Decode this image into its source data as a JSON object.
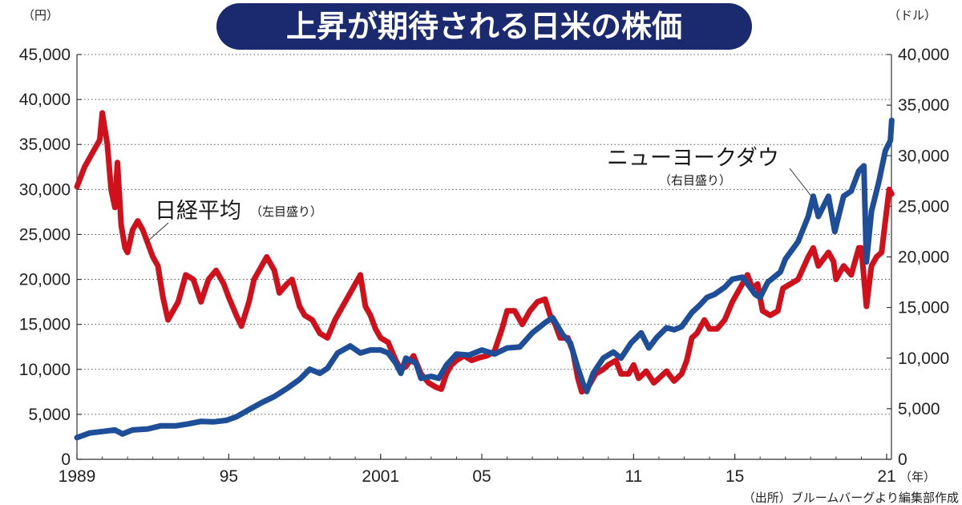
{
  "chart_data": {
    "type": "line",
    "title": "上昇が期待される日米の株価",
    "left_unit": "（円）",
    "right_unit": "（ドル）",
    "x_unit": "（年）",
    "source": "（出所）ブルームバーグより編集部作成",
    "x_range": [
      1989,
      2021
    ],
    "x_ticks": [
      {
        "value": 1989,
        "label": "1989"
      },
      {
        "value": 1995,
        "label": "95"
      },
      {
        "value": 2001,
        "label": "2001"
      },
      {
        "value": 2005,
        "label": "05"
      },
      {
        "value": 2011,
        "label": "11"
      },
      {
        "value": 2015,
        "label": "15"
      },
      {
        "value": 2021,
        "label": "21"
      }
    ],
    "left_axis": {
      "min": 0,
      "max": 45000,
      "ticks": [
        "0",
        "5,000",
        "10,000",
        "15,000",
        "20,000",
        "25,000",
        "30,000",
        "35,000",
        "40,000",
        "45,000"
      ],
      "values": [
        0,
        5000,
        10000,
        15000,
        20000,
        25000,
        30000,
        35000,
        40000,
        45000
      ]
    },
    "right_axis": {
      "min": 0,
      "max": 40000,
      "ticks": [
        "0",
        "5,000",
        "10,000",
        "15,000",
        "20,000",
        "25,000",
        "30,000",
        "35,000",
        "40,000"
      ],
      "values": [
        0,
        5000,
        10000,
        15000,
        20000,
        25000,
        30000,
        35000,
        40000
      ]
    },
    "grid": "horizontal-dotted",
    "series": [
      {
        "name": "日経平均",
        "note": "（左目盛り）",
        "axis": "left",
        "color": "#d0111b",
        "points": [
          [
            1989.0,
            30300
          ],
          [
            1989.3,
            32500
          ],
          [
            1989.6,
            34000
          ],
          [
            1989.9,
            35500
          ],
          [
            1990.0,
            38500
          ],
          [
            1990.2,
            35000
          ],
          [
            1990.35,
            30000
          ],
          [
            1990.5,
            28000
          ],
          [
            1990.6,
            33000
          ],
          [
            1990.75,
            26000
          ],
          [
            1990.9,
            23500
          ],
          [
            1991.0,
            23000
          ],
          [
            1991.2,
            25500
          ],
          [
            1991.4,
            26500
          ],
          [
            1991.6,
            25500
          ],
          [
            1991.8,
            24000
          ],
          [
            1992.0,
            22500
          ],
          [
            1992.2,
            21500
          ],
          [
            1992.4,
            18000
          ],
          [
            1992.6,
            15500
          ],
          [
            1992.8,
            16500
          ],
          [
            1993.0,
            17500
          ],
          [
            1993.3,
            20500
          ],
          [
            1993.6,
            20000
          ],
          [
            1993.9,
            17500
          ],
          [
            1994.2,
            20000
          ],
          [
            1994.5,
            21000
          ],
          [
            1994.8,
            19500
          ],
          [
            1995.0,
            18000
          ],
          [
            1995.3,
            16000
          ],
          [
            1995.5,
            14800
          ],
          [
            1995.8,
            17500
          ],
          [
            1996.0,
            20000
          ],
          [
            1996.3,
            21500
          ],
          [
            1996.5,
            22500
          ],
          [
            1996.8,
            21000
          ],
          [
            1997.0,
            18500
          ],
          [
            1997.3,
            19500
          ],
          [
            1997.5,
            20000
          ],
          [
            1997.8,
            17000
          ],
          [
            1998.0,
            16000
          ],
          [
            1998.3,
            15500
          ],
          [
            1998.6,
            14000
          ],
          [
            1998.9,
            13500
          ],
          [
            1999.2,
            15500
          ],
          [
            1999.5,
            17000
          ],
          [
            1999.8,
            18500
          ],
          [
            2000.0,
            19500
          ],
          [
            2000.2,
            20500
          ],
          [
            2000.4,
            17000
          ],
          [
            2000.6,
            16000
          ],
          [
            2000.8,
            14500
          ],
          [
            2001.0,
            13500
          ],
          [
            2001.3,
            13000
          ],
          [
            2001.6,
            11000
          ],
          [
            2001.8,
            10000
          ],
          [
            2002.0,
            10300
          ],
          [
            2002.3,
            11500
          ],
          [
            2002.6,
            9500
          ],
          [
            2002.9,
            8500
          ],
          [
            2003.2,
            8000
          ],
          [
            2003.4,
            7800
          ],
          [
            2003.6,
            9500
          ],
          [
            2003.8,
            10500
          ],
          [
            2004.0,
            11000
          ],
          [
            2004.3,
            11500
          ],
          [
            2004.6,
            11000
          ],
          [
            2004.9,
            11300
          ],
          [
            2005.2,
            11500
          ],
          [
            2005.5,
            12000
          ],
          [
            2005.8,
            14500
          ],
          [
            2006.0,
            16500
          ],
          [
            2006.3,
            16500
          ],
          [
            2006.6,
            15000
          ],
          [
            2006.9,
            16500
          ],
          [
            2007.2,
            17500
          ],
          [
            2007.5,
            17800
          ],
          [
            2007.7,
            16000
          ],
          [
            2007.9,
            15000
          ],
          [
            2008.1,
            13500
          ],
          [
            2008.4,
            13500
          ],
          [
            2008.6,
            12000
          ],
          [
            2008.8,
            9000
          ],
          [
            2008.95,
            7500
          ],
          [
            2009.2,
            8000
          ],
          [
            2009.5,
            9500
          ],
          [
            2009.8,
            10000
          ],
          [
            2010.0,
            10500
          ],
          [
            2010.3,
            11000
          ],
          [
            2010.5,
            9500
          ],
          [
            2010.8,
            9500
          ],
          [
            2011.0,
            10500
          ],
          [
            2011.2,
            9000
          ],
          [
            2011.5,
            9800
          ],
          [
            2011.8,
            8500
          ],
          [
            2012.0,
            9000
          ],
          [
            2012.3,
            9800
          ],
          [
            2012.6,
            8700
          ],
          [
            2012.9,
            9500
          ],
          [
            2013.1,
            11000
          ],
          [
            2013.3,
            13500
          ],
          [
            2013.5,
            14000
          ],
          [
            2013.8,
            15500
          ],
          [
            2014.0,
            14500
          ],
          [
            2014.3,
            14500
          ],
          [
            2014.6,
            15500
          ],
          [
            2014.9,
            17500
          ],
          [
            2015.2,
            19000
          ],
          [
            2015.5,
            20500
          ],
          [
            2015.7,
            19000
          ],
          [
            2015.9,
            19500
          ],
          [
            2016.1,
            16500
          ],
          [
            2016.4,
            16000
          ],
          [
            2016.7,
            16500
          ],
          [
            2016.9,
            19000
          ],
          [
            2017.2,
            19500
          ],
          [
            2017.5,
            20000
          ],
          [
            2017.9,
            22500
          ],
          [
            2018.1,
            23500
          ],
          [
            2018.3,
            21500
          ],
          [
            2018.7,
            23000
          ],
          [
            2018.9,
            22000
          ],
          [
            2019.0,
            20000
          ],
          [
            2019.3,
            21500
          ],
          [
            2019.6,
            20500
          ],
          [
            2019.9,
            23500
          ],
          [
            2020.0,
            23500
          ],
          [
            2020.2,
            17000
          ],
          [
            2020.4,
            21500
          ],
          [
            2020.6,
            22500
          ],
          [
            2020.8,
            23000
          ],
          [
            2020.95,
            26500
          ],
          [
            2021.1,
            30000
          ],
          [
            2021.2,
            29500
          ]
        ]
      },
      {
        "name": "ニューヨークダウ",
        "note": "（右目盛り）",
        "axis": "right",
        "color": "#1f4e99",
        "points": [
          [
            1989.0,
            2150
          ],
          [
            1989.5,
            2600
          ],
          [
            1990.0,
            2750
          ],
          [
            1990.5,
            2900
          ],
          [
            1990.8,
            2500
          ],
          [
            1991.2,
            2900
          ],
          [
            1991.8,
            3000
          ],
          [
            1992.3,
            3300
          ],
          [
            1992.9,
            3300
          ],
          [
            1993.4,
            3500
          ],
          [
            1993.9,
            3750
          ],
          [
            1994.4,
            3700
          ],
          [
            1994.9,
            3850
          ],
          [
            1995.3,
            4200
          ],
          [
            1995.8,
            4900
          ],
          [
            1996.3,
            5600
          ],
          [
            1996.8,
            6200
          ],
          [
            1997.3,
            7000
          ],
          [
            1997.8,
            7900
          ],
          [
            1998.2,
            8900
          ],
          [
            1998.6,
            8500
          ],
          [
            1998.9,
            9000
          ],
          [
            1999.3,
            10500
          ],
          [
            1999.8,
            11200
          ],
          [
            2000.2,
            10500
          ],
          [
            2000.6,
            10800
          ],
          [
            2001.0,
            10800
          ],
          [
            2001.3,
            10500
          ],
          [
            2001.6,
            9500
          ],
          [
            2001.8,
            8500
          ],
          [
            2002.0,
            10000
          ],
          [
            2002.4,
            9500
          ],
          [
            2002.6,
            8000
          ],
          [
            2003.0,
            8200
          ],
          [
            2003.3,
            8000
          ],
          [
            2003.6,
            9300
          ],
          [
            2004.0,
            10400
          ],
          [
            2004.5,
            10300
          ],
          [
            2005.0,
            10800
          ],
          [
            2005.5,
            10400
          ],
          [
            2006.0,
            11000
          ],
          [
            2006.5,
            11100
          ],
          [
            2007.0,
            12500
          ],
          [
            2007.5,
            13500
          ],
          [
            2007.8,
            14000
          ],
          [
            2008.2,
            12300
          ],
          [
            2008.5,
            11500
          ],
          [
            2008.8,
            9000
          ],
          [
            2009.0,
            7500
          ],
          [
            2009.15,
            6700
          ],
          [
            2009.4,
            8500
          ],
          [
            2009.8,
            10000
          ],
          [
            2010.2,
            10600
          ],
          [
            2010.5,
            10000
          ],
          [
            2010.9,
            11500
          ],
          [
            2011.3,
            12500
          ],
          [
            2011.6,
            11000
          ],
          [
            2011.9,
            12000
          ],
          [
            2012.3,
            13000
          ],
          [
            2012.6,
            12800
          ],
          [
            2012.9,
            13100
          ],
          [
            2013.3,
            14500
          ],
          [
            2013.6,
            15200
          ],
          [
            2013.9,
            16000
          ],
          [
            2014.2,
            16300
          ],
          [
            2014.6,
            17000
          ],
          [
            2014.9,
            17800
          ],
          [
            2015.3,
            18000
          ],
          [
            2015.6,
            17000
          ],
          [
            2015.8,
            16300
          ],
          [
            2016.0,
            16000
          ],
          [
            2016.3,
            17500
          ],
          [
            2016.8,
            18500
          ],
          [
            2017.0,
            19800
          ],
          [
            2017.5,
            21500
          ],
          [
            2017.9,
            24000
          ],
          [
            2018.1,
            26000
          ],
          [
            2018.3,
            24000
          ],
          [
            2018.7,
            26000
          ],
          [
            2018.95,
            22500
          ],
          [
            2019.3,
            26000
          ],
          [
            2019.6,
            26500
          ],
          [
            2019.9,
            28500
          ],
          [
            2020.1,
            29000
          ],
          [
            2020.2,
            19500
          ],
          [
            2020.4,
            24500
          ],
          [
            2020.7,
            27500
          ],
          [
            2020.95,
            30500
          ],
          [
            2021.15,
            31500
          ],
          [
            2021.2,
            33500
          ]
        ]
      }
    ]
  }
}
